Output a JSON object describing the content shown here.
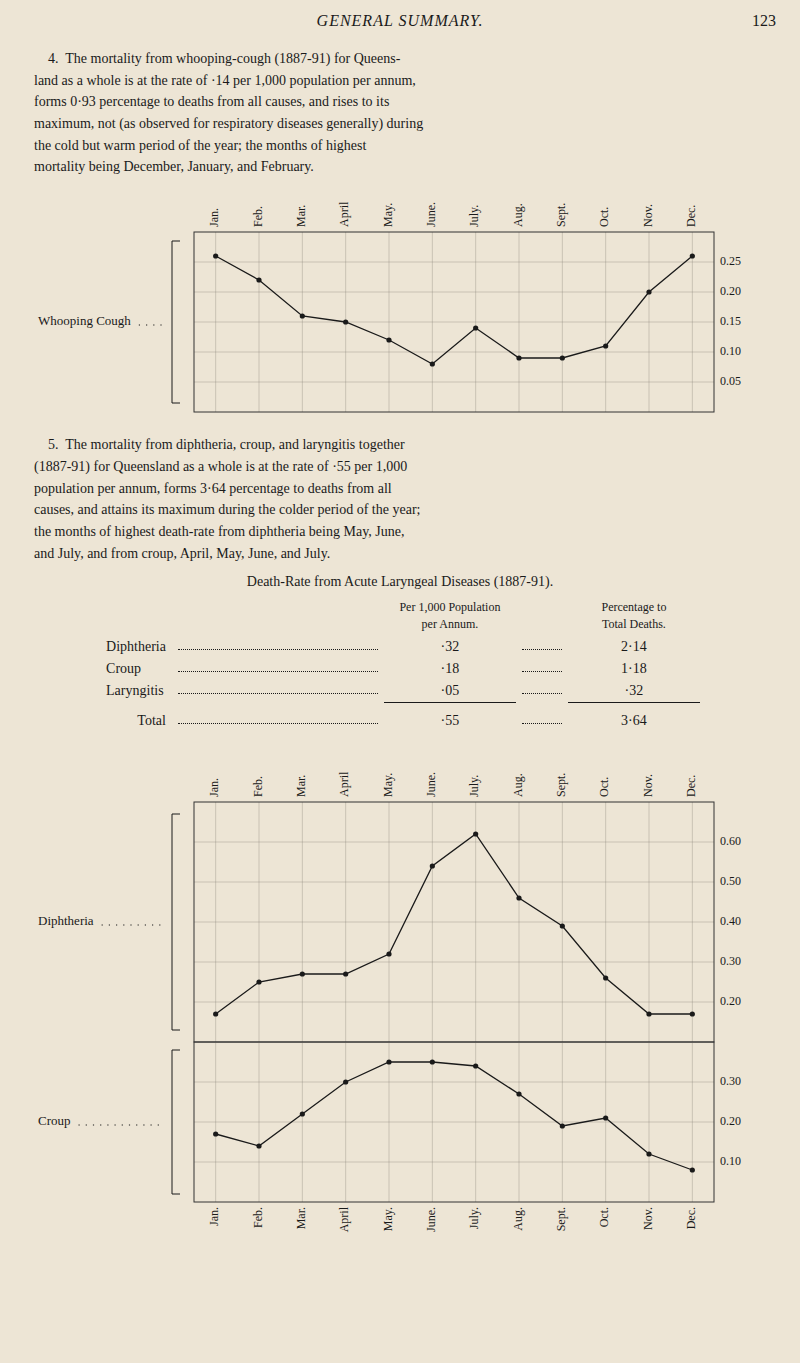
{
  "page_title": "GENERAL SUMMARY.",
  "page_number": "123",
  "paragraphs": [
    "    4.  The mortality from whooping-cough (1887-91) for Queens-\nland as a whole is at the rate of ·14 per 1,000 population per annum,\nforms 0·93 percentage to deaths from all causes, and rises to its\nmaximum, not (as observed for respiratory diseases generally) during\nthe cold but warm period of the year; the months of highest\nmortality being December, January, and February.",
    "    5.  The mortality from diphtheria, croup, and laryngitis together\n(1887-91) for Queensland as a whole is at the rate of ·55 per 1,000\npopulation per annum, forms 3·64 percentage to deaths from all\ncauses, and attains its maximum during the colder period of the year;\nthe months of highest death-rate from diphtheria being May, June,\nand July, and from croup, April, May, June, and July."
  ],
  "table": {
    "title": "Death-Rate from Acute Laryngeal Diseases (1887-91).",
    "columns": [
      [
        "Per 1,000 Population",
        "per Annum."
      ],
      [
        "Percentage to",
        "Total Deaths."
      ]
    ],
    "rows": [
      [
        "Diphtheria",
        "·32",
        "2·14"
      ],
      [
        "Croup",
        "·18",
        "1·18"
      ],
      [
        "Laryngitis",
        "·05",
        "·32"
      ]
    ],
    "total": [
      "Total",
      "·55",
      "3·64"
    ]
  },
  "chart_data": [
    {
      "type": "line",
      "categories": [
        "Jan.",
        "Feb.",
        "Mar.",
        "April",
        "May.",
        "June.",
        "July.",
        "Aug.",
        "Sept.",
        "Oct.",
        "Nov.",
        "Dec."
      ],
      "series": [
        {
          "name": "Whooping Cough",
          "color": "#1a1a1a",
          "marker": "circle",
          "line_style": "solid",
          "values": [
            0.26,
            0.22,
            0.16,
            0.15,
            0.12,
            0.08,
            0.14,
            0.09,
            0.09,
            0.11,
            0.2,
            0.26
          ]
        }
      ],
      "ylim": [
        0.0,
        0.3
      ],
      "yticks": [
        0.05,
        {
          "value": 0.1,
          "label": "0.10"
        },
        0.15,
        {
          "value": 0.2,
          "label": "0.20"
        },
        0.25
      ],
      "grid": true
    },
    {
      "type": "line",
      "categories": [
        "Jan.",
        "Feb.",
        "Mar.",
        "April",
        "May.",
        "June.",
        "July.",
        "Aug.",
        "Sept.",
        "Oct.",
        "Nov.",
        "Dec."
      ],
      "series": [
        {
          "name": "Diphtheria",
          "color": "#1a1a1a",
          "marker": "circle",
          "line_style": "solid",
          "values": [
            0.17,
            0.25,
            0.27,
            0.27,
            0.32,
            0.54,
            0.62,
            0.46,
            0.39,
            0.26,
            0.17,
            0.17
          ]
        }
      ],
      "ylim": [
        0.1,
        0.7
      ],
      "yticks": [
        {
          "value": 0.2,
          "label": "0.20"
        },
        {
          "value": 0.3,
          "label": "0.30"
        },
        {
          "value": 0.4,
          "label": "0.40"
        },
        {
          "value": 0.5,
          "label": "0.50"
        },
        {
          "value": 0.6,
          "label": "0.60"
        }
      ],
      "grid": true
    },
    {
      "type": "line",
      "categories": [
        "Jan.",
        "Feb.",
        "Mar.",
        "April",
        "May.",
        "June.",
        "July.",
        "Aug.",
        "Sept.",
        "Oct.",
        "Nov.",
        "Dec."
      ],
      "series": [
        {
          "name": "Croup",
          "color": "#1a1a1a",
          "marker": "circle",
          "line_style": "solid",
          "values": [
            0.17,
            0.14,
            0.22,
            0.3,
            0.35,
            0.35,
            0.34,
            0.27,
            0.19,
            0.21,
            0.12,
            0.08
          ]
        }
      ],
      "ylim": [
        0.0,
        0.4
      ],
      "yticks": [
        {
          "value": 0.1,
          "label": "0.10"
        },
        {
          "value": 0.2,
          "label": "0.20"
        },
        {
          "value": 0.3,
          "label": "0.30"
        }
      ],
      "grid": true
    }
  ]
}
